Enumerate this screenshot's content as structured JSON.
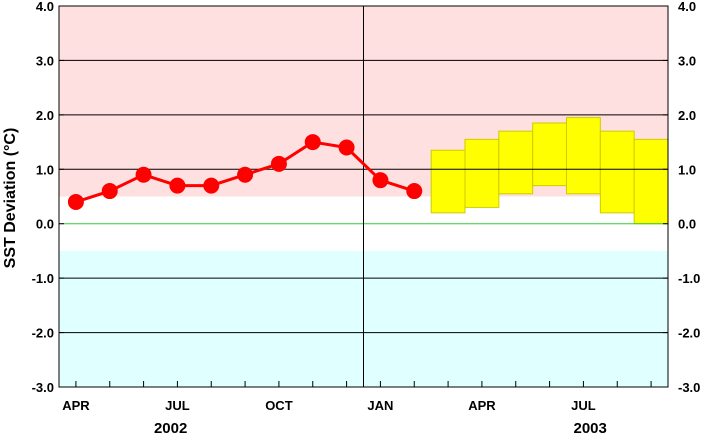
{
  "chart_data": {
    "type": "line",
    "ylabel": "SST Deviation (°C)",
    "ylim": [
      -3.0,
      4.0
    ],
    "y_ticks": [
      "-3.0",
      "-2.0",
      "-1.0",
      "0.0",
      "1.0",
      "2.0",
      "3.0",
      "4.0"
    ],
    "x_ticks": [
      "APR",
      "JUL",
      "OCT",
      "JAN",
      "APR",
      "JUL"
    ],
    "years": [
      "2002",
      "2003"
    ],
    "bands": {
      "warm_threshold": 0.5,
      "cold_threshold": -0.5
    },
    "series": [
      {
        "kind": "observed",
        "x": [
          "2002-04",
          "2002-05",
          "2002-06",
          "2002-07",
          "2002-08",
          "2002-09",
          "2002-10",
          "2002-11",
          "2002-12",
          "2003-01",
          "2003-02"
        ],
        "values": [
          0.4,
          0.6,
          0.9,
          0.7,
          0.7,
          0.9,
          1.1,
          1.5,
          1.4,
          0.8,
          0.6
        ]
      },
      {
        "kind": "forecast_range",
        "x": [
          "2003-03",
          "2003-04",
          "2003-05",
          "2003-06",
          "2003-07",
          "2003-08",
          "2003-09"
        ],
        "low": [
          0.2,
          0.3,
          0.55,
          0.7,
          0.55,
          0.2,
          0.0
        ],
        "high": [
          1.35,
          1.55,
          1.7,
          1.85,
          1.95,
          1.7,
          1.55
        ]
      }
    ],
    "colors": {
      "warm_band": "#ffe0e0",
      "cold_band": "#e0ffff",
      "zero_line": "#33cc33",
      "observed": "#ff0000",
      "forecast_fill": "#ffff00",
      "forecast_edge": "#cccc00"
    }
  }
}
